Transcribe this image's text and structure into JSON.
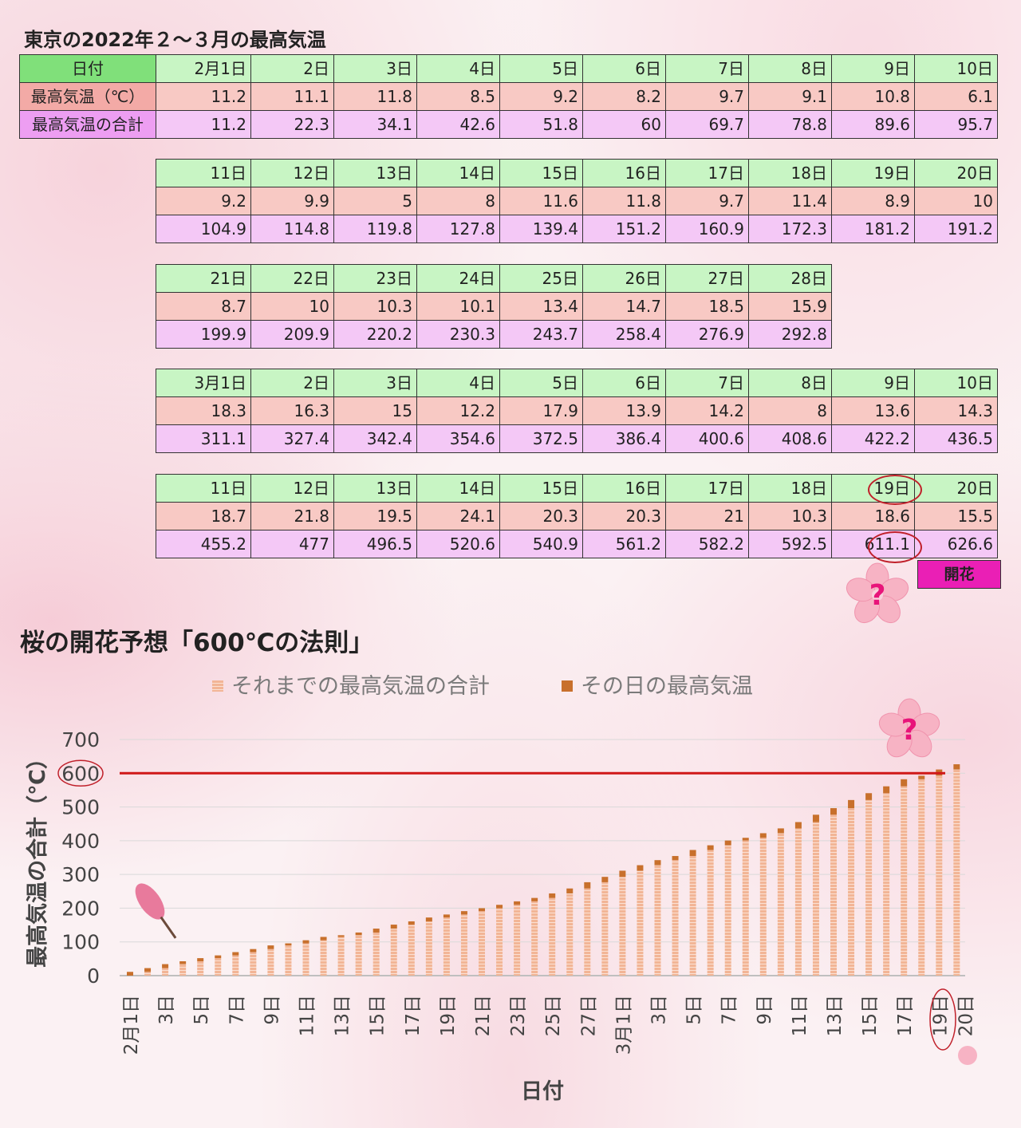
{
  "page": {
    "table_title": "東京の2022年２～３月の最高気温",
    "row_labels": {
      "date": "日付",
      "temp": "最高気温（℃）",
      "sum": "最高気温の合計"
    },
    "bloom_label": "開花",
    "chart_title": "桜の開花予想「600℃の法則」"
  },
  "table_blocks": [
    {
      "dates": [
        "2月1日",
        "2日",
        "3日",
        "4日",
        "5日",
        "6日",
        "7日",
        "8日",
        "9日",
        "10日"
      ],
      "temps": [
        "11.2",
        "11.1",
        "11.8",
        "8.5",
        "9.2",
        "8.2",
        "9.7",
        "9.1",
        "10.8",
        "6.1"
      ],
      "sums": [
        "11.2",
        "22.3",
        "34.1",
        "42.6",
        "51.8",
        "60",
        "69.7",
        "78.8",
        "89.6",
        "95.7"
      ]
    },
    {
      "dates": [
        "11日",
        "12日",
        "13日",
        "14日",
        "15日",
        "16日",
        "17日",
        "18日",
        "19日",
        "20日"
      ],
      "temps": [
        "9.2",
        "9.9",
        "5",
        "8",
        "11.6",
        "11.8",
        "9.7",
        "11.4",
        "8.9",
        "10"
      ],
      "sums": [
        "104.9",
        "114.8",
        "119.8",
        "127.8",
        "139.4",
        "151.2",
        "160.9",
        "172.3",
        "181.2",
        "191.2"
      ]
    },
    {
      "dates": [
        "21日",
        "22日",
        "23日",
        "24日",
        "25日",
        "26日",
        "27日",
        "28日"
      ],
      "temps": [
        "8.7",
        "10",
        "10.3",
        "10.1",
        "13.4",
        "14.7",
        "18.5",
        "15.9"
      ],
      "sums": [
        "199.9",
        "209.9",
        "220.2",
        "230.3",
        "243.7",
        "258.4",
        "276.9",
        "292.8"
      ]
    },
    {
      "dates": [
        "3月1日",
        "2日",
        "3日",
        "4日",
        "5日",
        "6日",
        "7日",
        "8日",
        "9日",
        "10日"
      ],
      "temps": [
        "18.3",
        "16.3",
        "15",
        "12.2",
        "17.9",
        "13.9",
        "14.2",
        "8",
        "13.6",
        "14.3"
      ],
      "sums": [
        "311.1",
        "327.4",
        "342.4",
        "354.6",
        "372.5",
        "386.4",
        "400.6",
        "408.6",
        "422.2",
        "436.5"
      ]
    },
    {
      "dates": [
        "11日",
        "12日",
        "13日",
        "14日",
        "15日",
        "16日",
        "17日",
        "18日",
        "19日",
        "20日"
      ],
      "temps": [
        "18.7",
        "21.8",
        "19.5",
        "24.1",
        "20.3",
        "20.3",
        "21",
        "10.3",
        "18.6",
        "15.5"
      ],
      "sums": [
        "455.2",
        "477",
        "496.5",
        "520.6",
        "540.9",
        "561.2",
        "582.2",
        "592.5",
        "611.1",
        "626.6"
      ]
    }
  ],
  "chart_data": {
    "type": "bar",
    "stacked": true,
    "title": "桜の開花予想「600℃の法則」",
    "xlabel": "日付",
    "ylabel": "最高気温の合計（℃）",
    "ylim": [
      0,
      700
    ],
    "yticks": [
      0,
      100,
      200,
      300,
      400,
      500,
      600,
      700
    ],
    "reference_line": 600,
    "legend_position": "top",
    "categories": [
      "2月1日",
      "2日",
      "3日",
      "4日",
      "5日",
      "6日",
      "7日",
      "8日",
      "9日",
      "10日",
      "11日",
      "12日",
      "13日",
      "14日",
      "15日",
      "16日",
      "17日",
      "18日",
      "19日",
      "20日",
      "21日",
      "22日",
      "23日",
      "24日",
      "25日",
      "26日",
      "27日",
      "28日",
      "3月1日",
      "2日",
      "3日",
      "4日",
      "5日",
      "6日",
      "7日",
      "8日",
      "9日",
      "10日",
      "11日",
      "12日",
      "13日",
      "14日",
      "15日",
      "16日",
      "17日",
      "18日",
      "19日",
      "20日"
    ],
    "tick_labels": [
      "2月1日",
      "3日",
      "5日",
      "7日",
      "9日",
      "11日",
      "13日",
      "15日",
      "17日",
      "19日",
      "21日",
      "23日",
      "25日",
      "27日",
      "3月1日",
      "3日",
      "5日",
      "7日",
      "9日",
      "11日",
      "13日",
      "15日",
      "17日",
      "19日",
      "20日"
    ],
    "series": [
      {
        "name": "それまでの最高気温の合計",
        "color": "#f2b596",
        "values": [
          0,
          11.2,
          22.3,
          34.1,
          42.6,
          51.8,
          60,
          69.7,
          78.8,
          89.6,
          95.7,
          104.9,
          114.8,
          119.8,
          127.8,
          139.4,
          151.2,
          160.9,
          172.3,
          181.2,
          191.2,
          199.9,
          209.9,
          220.2,
          230.3,
          243.7,
          258.4,
          276.9,
          292.8,
          311.1,
          327.4,
          342.4,
          354.6,
          372.5,
          386.4,
          400.6,
          408.6,
          422.2,
          436.5,
          455.2,
          477,
          496.5,
          520.6,
          540.9,
          561.2,
          582.2,
          592.5,
          611.1
        ]
      },
      {
        "name": "その日の最高気温",
        "color": "#c8702c",
        "values": [
          11.2,
          11.1,
          11.8,
          8.5,
          9.2,
          8.2,
          9.7,
          9.1,
          10.8,
          6.1,
          9.2,
          9.9,
          5,
          8,
          11.6,
          11.8,
          9.7,
          11.4,
          8.9,
          10,
          8.7,
          10,
          10.3,
          10.1,
          13.4,
          14.7,
          18.5,
          15.9,
          18.3,
          16.3,
          15,
          12.2,
          17.9,
          13.9,
          14.2,
          8,
          13.6,
          14.3,
          18.7,
          21.8,
          19.5,
          24.1,
          20.3,
          20.3,
          21,
          10.3,
          18.6,
          15.5
        ]
      }
    ]
  }
}
